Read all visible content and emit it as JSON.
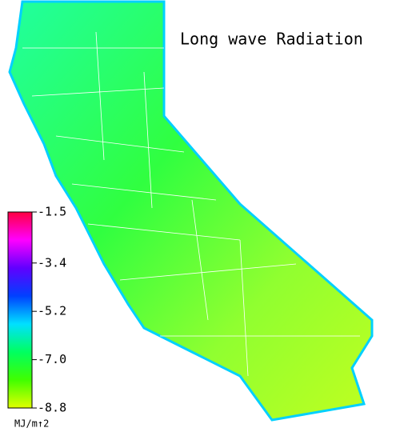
{
  "title": "Long wave Radiation",
  "colorbar": {
    "lim": [
      -8.8,
      -1.5
    ],
    "ticks": [
      -1.5,
      -3.4,
      -5.2,
      {
        "value": -7,
        "label": "-7.0"
      },
      -8.8
    ],
    "colors": [
      "#ff0040",
      "#ff00ff",
      "#6000ff",
      "#0040ff",
      "#00e0ff",
      "#00ff60",
      "#40ff00",
      "#e0ff00"
    ],
    "unit": "MJ/m↑2"
  }
}
